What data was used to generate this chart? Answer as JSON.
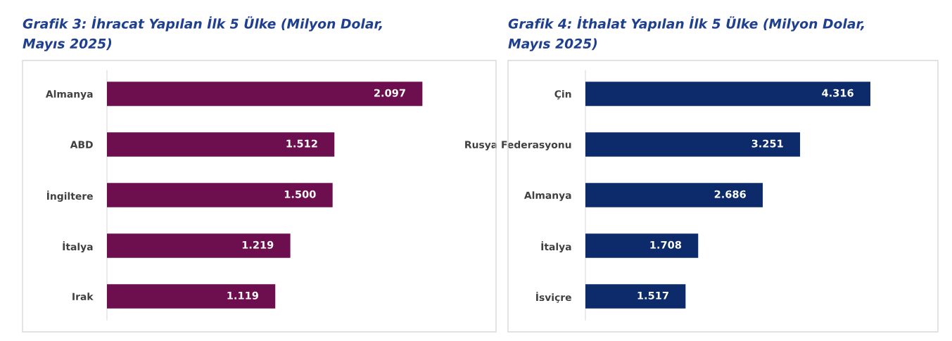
{
  "chart_data": [
    {
      "type": "bar",
      "orientation": "horizontal",
      "title": "Grafik 3: İhracat Yapılan İlk 5 Ülke (Milyon Dolar, Mayıs 2025)",
      "categories": [
        "Almanya",
        "ABD",
        "İngiltere",
        "İtalya",
        "Irak"
      ],
      "values": [
        2097,
        1512,
        1500,
        1219,
        1119
      ],
      "value_labels": [
        "2.097",
        "1.512",
        "1.500",
        "1.219",
        "1.119"
      ],
      "color": "#6d0f4f",
      "grid": false,
      "legend": false
    },
    {
      "type": "bar",
      "orientation": "horizontal",
      "title": "Grafik 4: İthalat Yapılan İlk 5 Ülke (Milyon Dolar, Mayıs 2025)",
      "categories": [
        "Çin",
        "Rusya Federasyonu",
        "Almanya",
        "İtalya",
        "İsviçre"
      ],
      "values": [
        4316,
        3251,
        2686,
        1708,
        1517
      ],
      "value_labels": [
        "4.316",
        "3.251",
        "2.686",
        "1.708",
        "1.517"
      ],
      "color": "#0d2a6b",
      "grid": false,
      "legend": false
    }
  ]
}
